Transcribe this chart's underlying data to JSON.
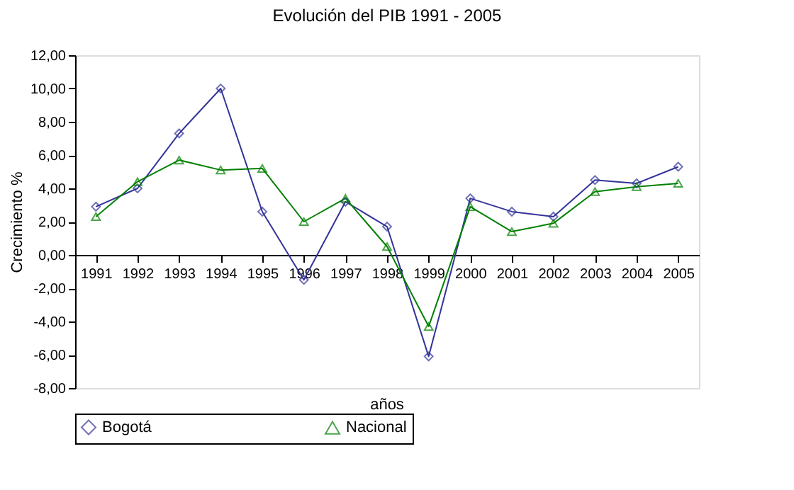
{
  "chart_data": {
    "type": "line",
    "title": "Evolución del PIB 1991 - 2005",
    "xlabel": "años",
    "ylabel": "Crecimiento %",
    "categories": [
      "1991",
      "1992",
      "1993",
      "1994",
      "1995",
      "1996",
      "1997",
      "1998",
      "1999",
      "2000",
      "2001",
      "2002",
      "2003",
      "2004",
      "2005"
    ],
    "series": [
      {
        "name": "Bogotá",
        "color": "#333399",
        "marker": "diamond",
        "values": [
          2.9,
          4.0,
          7.3,
          10.0,
          2.6,
          -1.5,
          3.2,
          1.7,
          -6.1,
          3.4,
          2.6,
          2.3,
          4.5,
          4.3,
          5.3
        ]
      },
      {
        "name": "Nacional",
        "color": "#008000",
        "marker": "triangle",
        "values": [
          2.3,
          4.4,
          5.7,
          5.1,
          5.2,
          2.0,
          3.4,
          0.5,
          -4.3,
          2.9,
          1.4,
          1.9,
          3.8,
          4.1,
          4.3
        ]
      }
    ],
    "ylim": [
      -8,
      12
    ],
    "yticks": [
      {
        "value": -8,
        "label": "-8,00"
      },
      {
        "value": -6,
        "label": "-6,00"
      },
      {
        "value": -4,
        "label": "-4,00"
      },
      {
        "value": -2,
        "label": "-2,00"
      },
      {
        "value": 0,
        "label": "0,00"
      },
      {
        "value": 2,
        "label": "2,00"
      },
      {
        "value": 4,
        "label": "4,00"
      },
      {
        "value": 6,
        "label": "6,00"
      },
      {
        "value": 8,
        "label": "8,00"
      },
      {
        "value": 10,
        "label": "10,00"
      },
      {
        "value": 12,
        "label": "12,00"
      }
    ],
    "grid": false,
    "legend": "bottom",
    "line_style": "solid"
  }
}
